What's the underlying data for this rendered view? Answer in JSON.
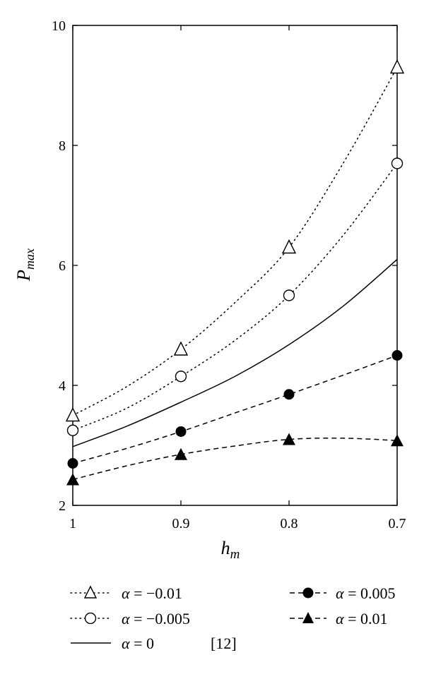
{
  "chart_data": {
    "type": "line",
    "xlabel": {
      "base": "h",
      "sub": "m"
    },
    "ylabel": {
      "base": "P",
      "sub": "max"
    },
    "xlim": [
      1.0,
      0.7
    ],
    "ylim": [
      2,
      10
    ],
    "x_reversed": true,
    "xticks": [
      1,
      0.9,
      0.8,
      0.7
    ],
    "xtick_labels": [
      "1",
      "0.9",
      "0.8",
      "0.7"
    ],
    "yticks": [
      2,
      4,
      6,
      8,
      10
    ],
    "ytick_labels": [
      "2",
      "4",
      "6",
      "8",
      "10"
    ],
    "grid": false,
    "legend_position": "bottom",
    "series": [
      {
        "key": "am001",
        "name": "α = −0.01",
        "line_style": "dotted",
        "marker": "open-triangle",
        "points": {
          "x": [
            1.0,
            0.9,
            0.8,
            0.7
          ],
          "y": [
            3.5,
            4.6,
            6.3,
            9.3
          ]
        },
        "curve": {
          "x": [
            1.0,
            0.95,
            0.9,
            0.85,
            0.8,
            0.75,
            0.7
          ],
          "y": [
            3.5,
            3.98,
            4.6,
            5.38,
            6.3,
            7.7,
            9.3
          ]
        }
      },
      {
        "key": "am0005",
        "name": "α = −0.005",
        "line_style": "dotted",
        "marker": "open-circle",
        "points": {
          "x": [
            1.0,
            0.9,
            0.8,
            0.7
          ],
          "y": [
            3.25,
            4.15,
            5.5,
            7.7
          ]
        },
        "curve": {
          "x": [
            1.0,
            0.95,
            0.9,
            0.85,
            0.8,
            0.75,
            0.7
          ],
          "y": [
            3.25,
            3.62,
            4.15,
            4.75,
            5.5,
            6.5,
            7.7
          ]
        }
      },
      {
        "key": "a0",
        "name": "α = 0",
        "ref": "[12]",
        "line_style": "solid",
        "marker": "none",
        "curve": {
          "x": [
            1.0,
            0.95,
            0.9,
            0.85,
            0.8,
            0.75,
            0.7
          ],
          "y": [
            2.98,
            3.32,
            3.72,
            4.15,
            4.68,
            5.32,
            6.1
          ]
        }
      },
      {
        "key": "ap0005",
        "name": "α = 0.005",
        "line_style": "dashed",
        "marker": "filled-circle",
        "points": {
          "x": [
            1.0,
            0.9,
            0.8,
            0.7
          ],
          "y": [
            2.7,
            3.23,
            3.85,
            4.5
          ]
        },
        "curve": {
          "x": [
            1.0,
            0.95,
            0.9,
            0.85,
            0.8,
            0.75,
            0.7
          ],
          "y": [
            2.7,
            2.95,
            3.23,
            3.54,
            3.85,
            4.17,
            4.5
          ]
        }
      },
      {
        "key": "ap001",
        "name": "α = 0.01",
        "line_style": "dashed",
        "marker": "filled-triangle",
        "points": {
          "x": [
            1.0,
            0.9,
            0.8,
            0.7
          ],
          "y": [
            2.43,
            2.85,
            3.1,
            3.08
          ]
        },
        "curve": {
          "x": [
            1.0,
            0.95,
            0.9,
            0.85,
            0.8,
            0.75,
            0.7
          ],
          "y": [
            2.43,
            2.66,
            2.85,
            2.99,
            3.1,
            3.12,
            3.08
          ]
        }
      }
    ],
    "legend": {
      "am001": {
        "alpha": "α",
        "rest": " = −0.01"
      },
      "am0005": {
        "alpha": "α",
        "rest": " = −0.005"
      },
      "a0": {
        "alpha": "α",
        "rest": " = 0",
        "ref": "[12]"
      },
      "ap0005": {
        "alpha": "α",
        "rest": " = 0.005"
      },
      "ap001": {
        "alpha": "α",
        "rest": " = 0.01"
      }
    }
  }
}
